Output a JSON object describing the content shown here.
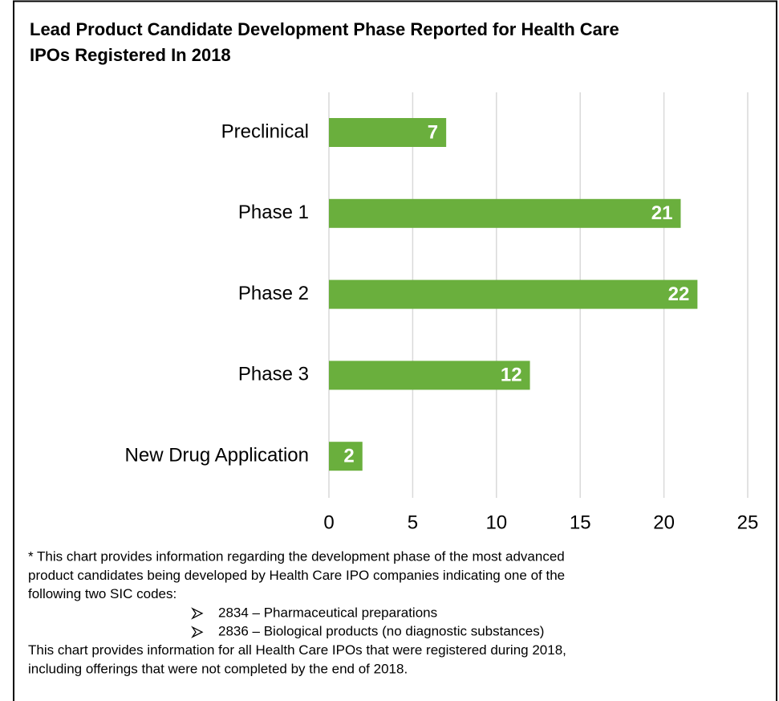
{
  "chart_data": {
    "type": "barh",
    "title_lines": [
      "Lead Product Candidate Development Phase Reported for Health Care",
      "IPOs Registered In 2018"
    ],
    "categories": [
      "Preclinical",
      "Phase 1",
      "Phase 2",
      "Phase 3",
      "New Drug Application"
    ],
    "values": [
      7,
      21,
      22,
      12,
      2
    ],
    "color": "#6aaf3d",
    "xlim": [
      0,
      25
    ],
    "xticks": [
      0,
      5,
      10,
      15,
      20,
      25
    ],
    "grid": true
  },
  "footnote": {
    "lines": [
      "* This chart provides information regarding the development phase of the most advanced",
      "product candidates being developed by Health Care IPO companies indicating one of the",
      "following two SIC codes:"
    ],
    "bullets": [
      "2834 – Pharmaceutical preparations",
      "2836 – Biological products (no diagnostic substances)"
    ],
    "closing_lines": [
      "This chart provides information for all Health Care IPOs that were registered during 2018,",
      "including offerings that were not completed by the end of 2018."
    ]
  }
}
